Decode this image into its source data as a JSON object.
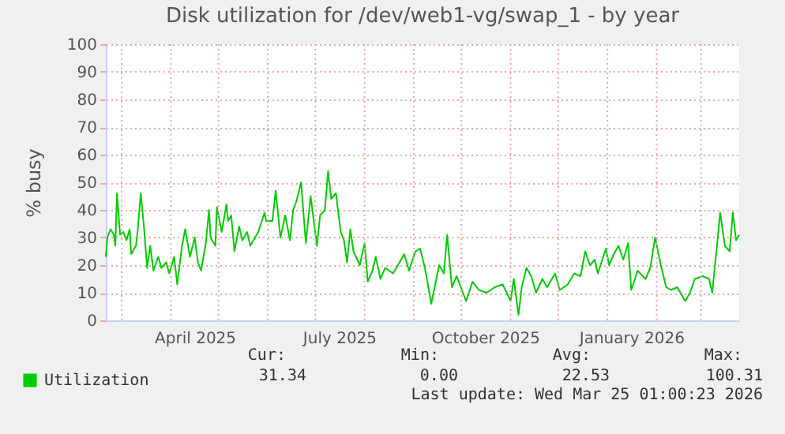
{
  "chart_data": {
    "type": "line",
    "title": "Disk utilization for /dev/web1-vg/swap_1 - by year",
    "ylabel": "% busy",
    "x": [
      "2025-02-19",
      "2025-02-20",
      "2025-02-22",
      "2025-02-24",
      "2025-02-25",
      "2025-02-26",
      "2025-02-28",
      "2025-03-02",
      "2025-03-04",
      "2025-03-06",
      "2025-03-07",
      "2025-03-10",
      "2025-03-11",
      "2025-03-13",
      "2025-03-15",
      "2025-03-17",
      "2025-03-19",
      "2025-03-21",
      "2025-03-24",
      "2025-03-26",
      "2025-03-29",
      "2025-03-31",
      "2025-04-03",
      "2025-04-05",
      "2025-04-08",
      "2025-04-10",
      "2025-04-13",
      "2025-04-16",
      "2025-04-18",
      "2025-04-20",
      "2025-04-23",
      "2025-04-25",
      "2025-04-26",
      "2025-04-29",
      "2025-04-30",
      "2025-05-03",
      "2025-05-06",
      "2025-05-07",
      "2025-05-09",
      "2025-05-11",
      "2025-05-14",
      "2025-05-16",
      "2025-05-19",
      "2025-05-21",
      "2025-05-26",
      "2025-05-30",
      "2025-05-31",
      "2025-06-04",
      "2025-06-06",
      "2025-06-09",
      "2025-06-12",
      "2025-06-15",
      "2025-06-17",
      "2025-06-19",
      "2025-06-22",
      "2025-06-25",
      "2025-06-28",
      "2025-06-30",
      "2025-07-02",
      "2025-07-04",
      "2025-07-07",
      "2025-07-09",
      "2025-07-11",
      "2025-07-14",
      "2025-07-15",
      "2025-07-17",
      "2025-07-19",
      "2025-07-21",
      "2025-07-23",
      "2025-07-25",
      "2025-07-29",
      "2025-08-01",
      "2025-08-03",
      "2025-08-06",
      "2025-08-08",
      "2025-08-11",
      "2025-08-14",
      "2025-08-19",
      "2025-08-26",
      "2025-08-29",
      "2025-09-02",
      "2025-09-05",
      "2025-09-08",
      "2025-09-12",
      "2025-09-17",
      "2025-09-20",
      "2025-09-22",
      "2025-09-25",
      "2025-09-28",
      "2025-10-04",
      "2025-10-08",
      "2025-10-12",
      "2025-10-17",
      "2025-10-22",
      "2025-10-27",
      "2025-11-01",
      "2025-11-03",
      "2025-11-06",
      "2025-11-08",
      "2025-11-11",
      "2025-11-14",
      "2025-11-17",
      "2025-11-21",
      "2025-11-24",
      "2025-11-29",
      "2025-12-02",
      "2025-12-07",
      "2025-12-11",
      "2025-12-15",
      "2025-12-18",
      "2025-12-21",
      "2025-12-24",
      "2025-12-26",
      "2025-12-31",
      "2026-01-02",
      "2026-01-05",
      "2026-01-08",
      "2026-01-11",
      "2026-01-14",
      "2026-01-16",
      "2026-01-20",
      "2026-01-25",
      "2026-01-28",
      "2026-01-31",
      "2026-02-04",
      "2026-02-07",
      "2026-02-10",
      "2026-02-14",
      "2026-02-19",
      "2026-02-22",
      "2026-02-25",
      "2026-03-02",
      "2026-03-06",
      "2026-03-08",
      "2026-03-11",
      "2026-03-13",
      "2026-03-16",
      "2026-03-19",
      "2026-03-21",
      "2026-03-23",
      "2026-03-25"
    ],
    "series": [
      {
        "name": "Utilization",
        "color": "#00cc00",
        "values": [
          23,
          30,
          33,
          31,
          27,
          46,
          31,
          32,
          29,
          33,
          24,
          27,
          32,
          46,
          34,
          19,
          27,
          18,
          23,
          19,
          21,
          17,
          23,
          13,
          27,
          33,
          23,
          30,
          21,
          18,
          28,
          40,
          30,
          27,
          41,
          32,
          42,
          36,
          38,
          25,
          34,
          29,
          32,
          27,
          32,
          39,
          36,
          36,
          47,
          30,
          38,
          29,
          40,
          43,
          50,
          28,
          45,
          36,
          27,
          38,
          40,
          54,
          44,
          46,
          41,
          32,
          29,
          21,
          33,
          25,
          20,
          28,
          14,
          18,
          23,
          15,
          19,
          17,
          24,
          18,
          25,
          26,
          19,
          6,
          20,
          17,
          31,
          12,
          16,
          7,
          14,
          11,
          10,
          12,
          13,
          7,
          15,
          2,
          12,
          19,
          16,
          10,
          15,
          12,
          17,
          11,
          13,
          17,
          16,
          25,
          20,
          22,
          17,
          26,
          20,
          24,
          27,
          22,
          28,
          11,
          18,
          15,
          19,
          30,
          19,
          12,
          11,
          12,
          7,
          10,
          15,
          16,
          15,
          10,
          27,
          39,
          27,
          25,
          39,
          29,
          31
        ]
      }
    ],
    "xlim": [
      "2025-02-19",
      "2026-03-25"
    ],
    "xticks": [
      {
        "value": "2025-03-01",
        "label": null
      },
      {
        "value": "2025-04-01",
        "label": null
      },
      {
        "value": "2025-04-16",
        "label": "April 2025"
      },
      {
        "value": "2025-05-01",
        "label": null
      },
      {
        "value": "2025-06-01",
        "label": null
      },
      {
        "value": "2025-07-01",
        "label": null
      },
      {
        "value": "2025-07-16",
        "label": "July 2025"
      },
      {
        "value": "2025-08-01",
        "label": null
      },
      {
        "value": "2025-09-01",
        "label": null
      },
      {
        "value": "2025-10-01",
        "label": null
      },
      {
        "value": "2025-10-16",
        "label": "October 2025"
      },
      {
        "value": "2025-11-01",
        "label": null
      },
      {
        "value": "2025-12-01",
        "label": null
      },
      {
        "value": "2026-01-01",
        "label": null
      },
      {
        "value": "2026-01-16",
        "label": "January 2026"
      },
      {
        "value": "2026-02-01",
        "label": null
      },
      {
        "value": "2026-03-01",
        "label": null
      }
    ],
    "ylim": [
      0,
      100
    ],
    "yticks": [
      0,
      10,
      20,
      30,
      40,
      50,
      60,
      70,
      80,
      90,
      100
    ],
    "grid": true,
    "legend": "bottom left",
    "annotations": [
      "Cur:",
      "Min:",
      "Avg:",
      "Max:",
      "31.34",
      "0.00",
      "22.53",
      "100.31",
      "Last update: Wed Mar 25 01:00:23 2026"
    ]
  }
}
